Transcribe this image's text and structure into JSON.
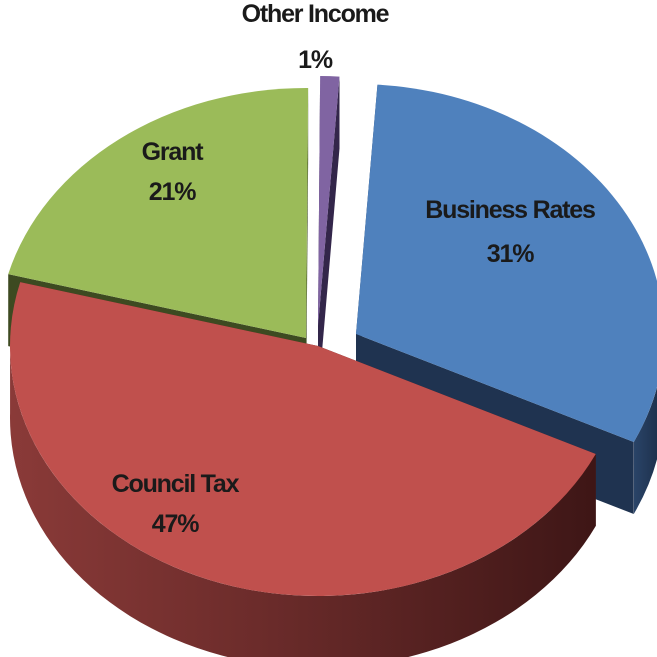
{
  "chart_data": {
    "type": "pie",
    "style": "3d-exploded",
    "categories": [
      "Business Rates",
      "Council Tax",
      "Grant",
      "Other Income"
    ],
    "values": [
      31,
      47,
      21,
      1
    ],
    "value_labels": [
      "31%",
      "47%",
      "21%",
      "1%"
    ],
    "colors": [
      "#4F81BD",
      "#C0504D",
      "#9BBB59",
      "#8064A2"
    ],
    "side_colors": [
      "#1F3350",
      "#4A1A1A",
      "#3D4A21",
      "#33264A"
    ],
    "legend": "none"
  }
}
